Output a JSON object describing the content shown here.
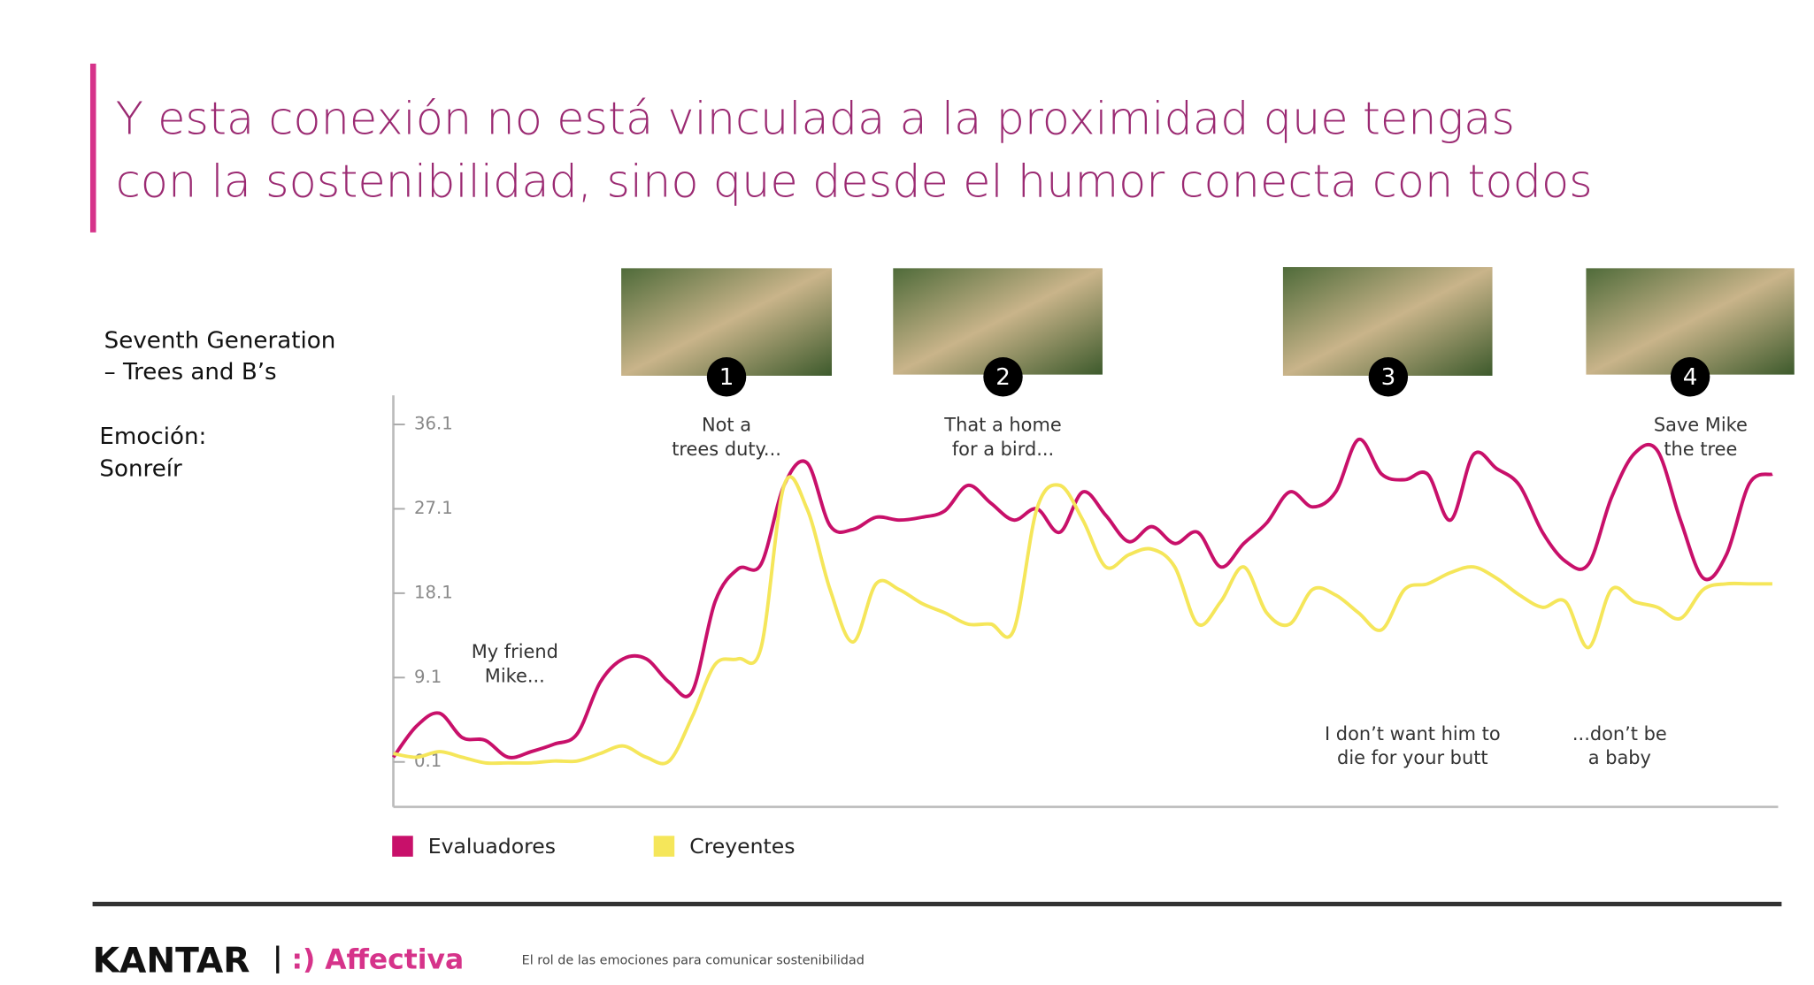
{
  "title": [
    "Y esta conexión no está vinculada a la proximidad que tengas",
    "con la sostenibilidad, sino que desde el humor conecta con todos"
  ],
  "ad": [
    "Seventh Generation",
    "– Trees and B’s"
  ],
  "emotion": {
    "label": "Emoción:",
    "value": "Sonreír"
  },
  "chart_data": {
    "type": "line",
    "yticks": [
      0.1,
      9.1,
      18.1,
      27.1,
      36.1
    ],
    "ylim": [
      -4.7,
      39.2
    ],
    "markers": [
      "1",
      "2",
      "3",
      "4"
    ],
    "annotations": [
      [
        "My friend",
        "Mike..."
      ],
      [
        "Not a",
        "trees duty..."
      ],
      [
        "That a home",
        "for a bird..."
      ],
      [
        "I don’t want him to",
        "die for your butt"
      ],
      [
        "...don’t be",
        "a baby"
      ],
      [
        "Save Mike",
        "the tree"
      ]
    ],
    "series": [
      {
        "name": "Evaluadores",
        "color": "#c8106a",
        "values": [
          0.6,
          3.9,
          5.3,
          2.7,
          2.4,
          0.6,
          1.2,
          2,
          3.1,
          8.6,
          11.1,
          11.1,
          8.6,
          7.6,
          17.2,
          20.7,
          21.2,
          29.6,
          32,
          25.3,
          24.9,
          26.2,
          25.9,
          26.2,
          26.9,
          29.6,
          27.7,
          25.9,
          27.1,
          24.6,
          28.9,
          26.4,
          23.6,
          25.2,
          23.4,
          24.6,
          20.9,
          23.4,
          25.6,
          28.9,
          27.3,
          28.9,
          34.5,
          30.8,
          30.2,
          30.8,
          25.9,
          32.9,
          31.4,
          29.6,
          24.6,
          21.5,
          21.2,
          28.3,
          33,
          33.3,
          25.9,
          19.7,
          22.2,
          29.8,
          30.8
        ]
      },
      {
        "name": "Creyentes",
        "color": "#f5e65a",
        "values": [
          1,
          0.6,
          1.2,
          0.6,
          0,
          0,
          0,
          0.2,
          0.2,
          1,
          1.8,
          0.6,
          0.2,
          4.9,
          10.5,
          11.1,
          12.3,
          29.6,
          27.1,
          18.5,
          12.9,
          19.1,
          18.5,
          17,
          16,
          14.8,
          14.8,
          14.2,
          27.1,
          29.6,
          25.9,
          20.9,
          22.2,
          22.8,
          20.9,
          14.8,
          17.2,
          20.9,
          16,
          14.8,
          18.5,
          17.9,
          16,
          14.2,
          18.5,
          19.1,
          20.3,
          20.9,
          19.7,
          17.9,
          16.6,
          17.2,
          12.3,
          18.5,
          17.2,
          16.6,
          15.4,
          18.5,
          19.1,
          19.1,
          19.1
        ]
      }
    ]
  },
  "footer": {
    "brand": "KANTAR",
    "partner": ":) Affectiva",
    "caption": "El rol de las emociones para comunicar sostenibilidad"
  }
}
